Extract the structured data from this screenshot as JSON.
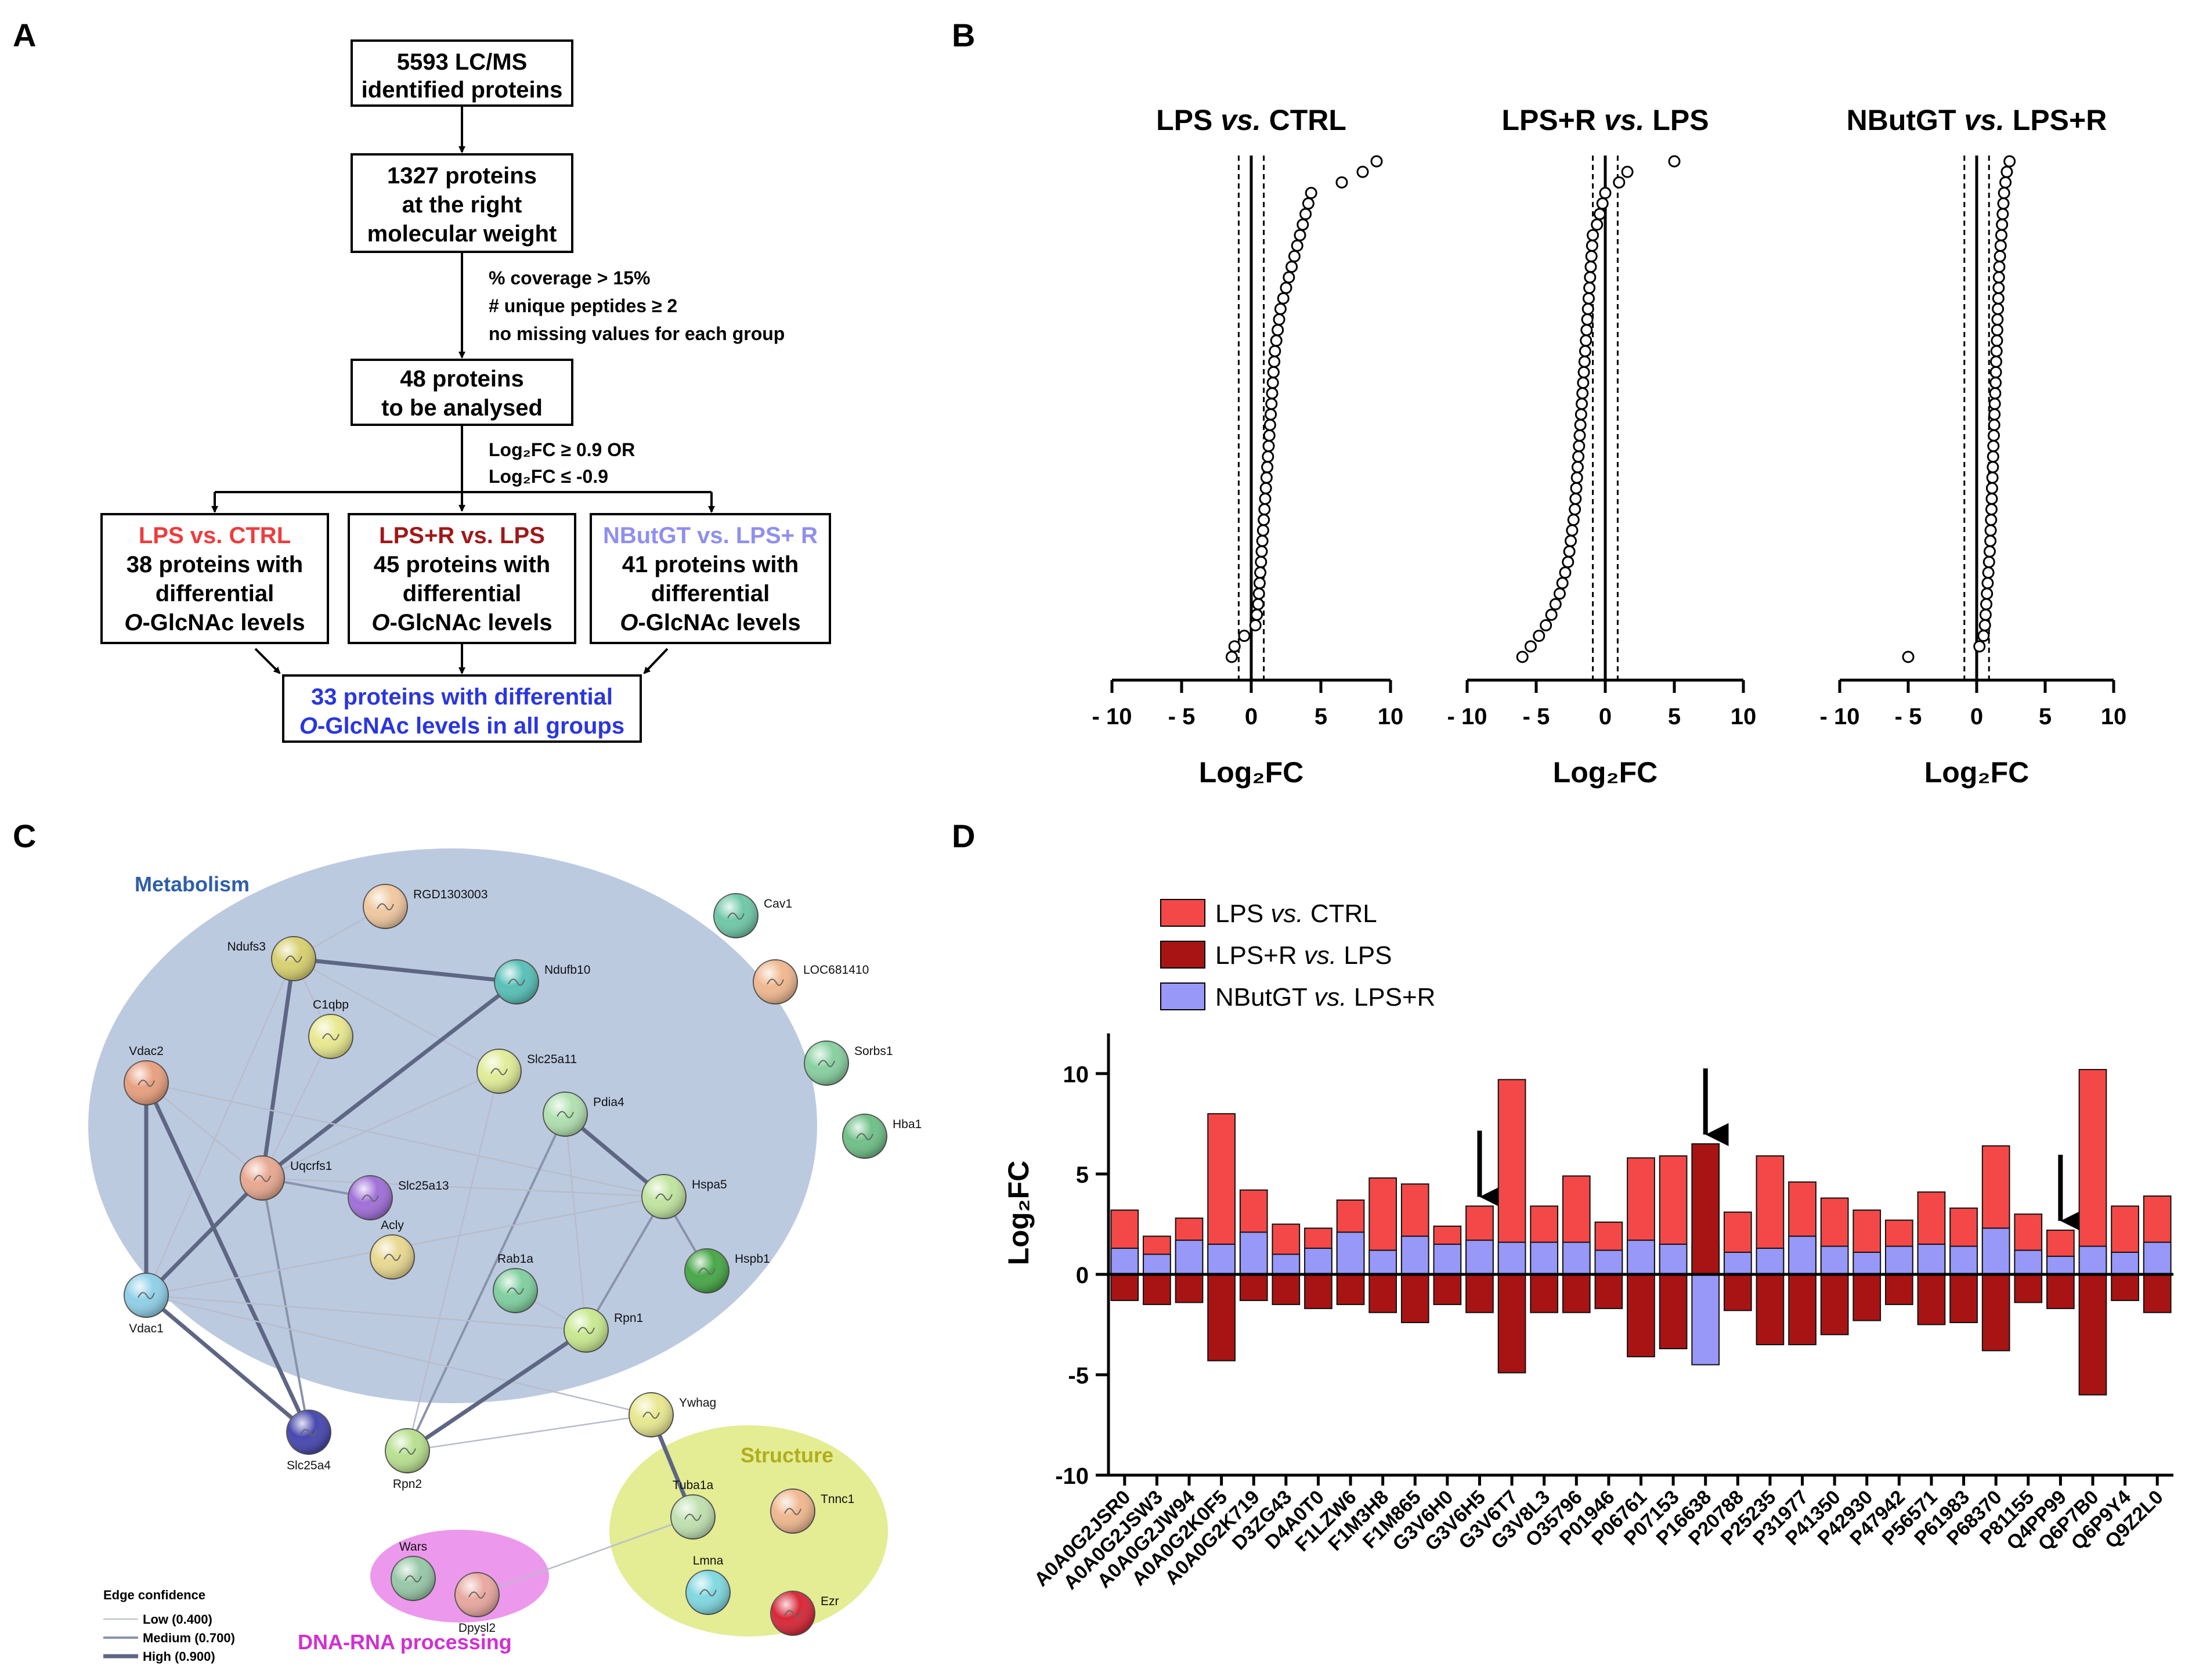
{
  "panels": {
    "a": "A",
    "b": "B",
    "c": "C",
    "d": "D"
  },
  "flow": {
    "box1": [
      "5593 LC/MS",
      "identified proteins"
    ],
    "box2": [
      "1327 proteins",
      "at the right",
      "molecular weight"
    ],
    "filter1": [
      "% coverage > 15%",
      "# unique peptides ≥ 2",
      "no missing values for each group"
    ],
    "box3": [
      "48 proteins",
      "to be analysed"
    ],
    "filter2_line1": "Log₂FC ≥ 0.9 OR",
    "filter2_line2": "Log₂FC ≤ -0.9",
    "groups": [
      {
        "title": "LPS vs. CTRL",
        "color": "#ee3c3c",
        "lines": [
          "38 proteins with",
          "differential"
        ]
      },
      {
        "title": "LPS+R vs. LPS",
        "color": "#a01818",
        "lines": [
          "45 proteins with",
          "differential"
        ]
      },
      {
        "title": "NButGT vs. LPS+ R",
        "color": "#8f8ff0",
        "lines": [
          "41 proteins with",
          "differential"
        ]
      }
    ],
    "o_prefix": "O",
    "o_suffix": "-GlcNAc levels",
    "final_line1": "33 proteins with differential",
    "final_line2_suffix": "-GlcNAc levels in all groups",
    "final_color": "#2a36e0"
  },
  "volcano": {
    "xlabel": "Log₂FC",
    "ticks": [
      "- 10",
      "- 5",
      "0",
      "5",
      "10"
    ],
    "tick_values": [
      -10,
      -5,
      0,
      5,
      10
    ],
    "threshold": 0.9,
    "plots": [
      {
        "title_a": "LPS ",
        "title_it": "vs.",
        "title_b": " CTRL",
        "values": [
          -1.4,
          -1.2,
          -0.5,
          0.3,
          0.4,
          0.5,
          0.55,
          0.6,
          0.65,
          0.7,
          0.75,
          0.8,
          0.85,
          0.9,
          0.95,
          1.0,
          1.05,
          1.1,
          1.15,
          1.2,
          1.25,
          1.3,
          1.35,
          1.4,
          1.45,
          1.5,
          1.55,
          1.6,
          1.65,
          1.7,
          1.8,
          1.9,
          2.0,
          2.1,
          2.3,
          2.5,
          2.7,
          2.9,
          3.1,
          3.3,
          3.5,
          3.7,
          3.9,
          4.1,
          4.3,
          6.5,
          8.0,
          9.0
        ]
      },
      {
        "title_a": "LPS+R ",
        "title_it": "vs.",
        "title_b": " LPS",
        "values": [
          -6.0,
          -5.4,
          -4.8,
          -4.3,
          -3.9,
          -3.6,
          -3.3,
          -3.1,
          -2.9,
          -2.7,
          -2.6,
          -2.5,
          -2.4,
          -2.3,
          -2.2,
          -2.15,
          -2.1,
          -2.05,
          -2.0,
          -1.95,
          -1.9,
          -1.85,
          -1.8,
          -1.75,
          -1.7,
          -1.65,
          -1.6,
          -1.55,
          -1.5,
          -1.45,
          -1.4,
          -1.35,
          -1.3,
          -1.25,
          -1.2,
          -1.15,
          -1.1,
          -1.05,
          -1.0,
          -0.95,
          -0.9,
          -0.6,
          -0.4,
          -0.2,
          0.0,
          1.0,
          1.6,
          5.0
        ]
      },
      {
        "title_a": "NButGT ",
        "title_it": "vs.",
        "title_b": " LPS+R",
        "values": [
          -5.0,
          0.2,
          0.5,
          0.6,
          0.65,
          0.7,
          0.75,
          0.8,
          0.85,
          0.9,
          0.95,
          1.0,
          1.02,
          1.05,
          1.08,
          1.1,
          1.12,
          1.15,
          1.18,
          1.2,
          1.22,
          1.25,
          1.28,
          1.3,
          1.32,
          1.35,
          1.38,
          1.4,
          1.42,
          1.45,
          1.48,
          1.5,
          1.52,
          1.55,
          1.58,
          1.6,
          1.62,
          1.65,
          1.7,
          1.75,
          1.8,
          1.85,
          1.9,
          1.95,
          2.0,
          2.1,
          2.2,
          2.4
        ]
      }
    ]
  },
  "network": {
    "groups": {
      "metabolism": {
        "label": "Metabolism",
        "color": "#2f5ea8"
      },
      "structure": {
        "label": "Structure",
        "color": "#b0ae1a"
      },
      "dna": {
        "label": "DNA-RNA processing",
        "color": "#d22fd2"
      }
    },
    "nodes": [
      {
        "id": "RGD1303003",
        "color": "#f0c8a0"
      },
      {
        "id": "Ndufs3",
        "color": "#d8d070"
      },
      {
        "id": "Ndufb10",
        "color": "#58c0b8"
      },
      {
        "id": "C1qbp",
        "color": "#e8e890"
      },
      {
        "id": "Slc25a11",
        "color": "#e0ec98"
      },
      {
        "id": "Vdac2",
        "color": "#e8a080"
      },
      {
        "id": "Pdia4",
        "color": "#b0e0b0"
      },
      {
        "id": "Uqcrfs1",
        "color": "#e8a890"
      },
      {
        "id": "Slc25a13",
        "color": "#a070d8"
      },
      {
        "id": "Hspa5",
        "color": "#c0e4a0"
      },
      {
        "id": "Hspb1",
        "color": "#48a848"
      },
      {
        "id": "Acly",
        "color": "#e8d890"
      },
      {
        "id": "Rab1a",
        "color": "#80d0a0"
      },
      {
        "id": "Vdac1",
        "color": "#90d0e8"
      },
      {
        "id": "Rpn1",
        "color": "#c8e890"
      },
      {
        "id": "Ywhag",
        "color": "#e8e890"
      },
      {
        "id": "Slc25a4",
        "color": "#4848b0"
      },
      {
        "id": "Rpn2",
        "color": "#b8e090"
      },
      {
        "id": "Cav1",
        "color": "#70c8a8"
      },
      {
        "id": "LOC681410",
        "color": "#f0b890"
      },
      {
        "id": "Sorbs1",
        "color": "#88d0a0"
      },
      {
        "id": "Hba1",
        "color": "#70c088"
      },
      {
        "id": "Tuba1a",
        "color": "#c0e0b0"
      },
      {
        "id": "Tnnc1",
        "color": "#f0b890"
      },
      {
        "id": "Lmna",
        "color": "#80d8e0"
      },
      {
        "id": "Ezr",
        "color": "#d82838"
      },
      {
        "id": "Wars",
        "color": "#98c8a8"
      },
      {
        "id": "Dpysl2",
        "color": "#e8a8a0"
      }
    ],
    "edges": [
      [
        "Ndufs3",
        "RGD1303003",
        1
      ],
      [
        "Ndufs3",
        "Ndufb10",
        3
      ],
      [
        "Ndufs3",
        "C1qbp",
        1
      ],
      [
        "Ndufs3",
        "Slc25a11",
        1
      ],
      [
        "Ndufs3",
        "Uqcrfs1",
        3
      ],
      [
        "Ndufs3",
        "Vdac1",
        1
      ],
      [
        "Ndufb10",
        "Uqcrfs1",
        3
      ],
      [
        "C1qbp",
        "Uqcrfs1",
        1
      ],
      [
        "Vdac2",
        "Vdac1",
        3
      ],
      [
        "Vdac2",
        "Slc25a4",
        3
      ],
      [
        "Vdac2",
        "Uqcrfs1",
        1
      ],
      [
        "Vdac2",
        "Hspa5",
        1
      ],
      [
        "Uqcrfs1",
        "Slc25a13",
        2
      ],
      [
        "Uqcrfs1",
        "Slc25a4",
        2
      ],
      [
        "Uqcrfs1",
        "Vdac1",
        3
      ],
      [
        "Uqcrfs1",
        "Slc25a11",
        1
      ],
      [
        "Slc25a11",
        "Rpn2",
        1
      ],
      [
        "Pdia4",
        "Hspa5",
        3
      ],
      [
        "Pdia4",
        "Rpn1",
        1
      ],
      [
        "Pdia4",
        "Rpn2",
        2
      ],
      [
        "Hspa5",
        "Hspb1",
        2
      ],
      [
        "Hspa5",
        "Rpn1",
        2
      ],
      [
        "Hspa5",
        "Vdac1",
        1
      ],
      [
        "Hspa5",
        "Uqcrfs1",
        1
      ],
      [
        "Vdac1",
        "Slc25a4",
        3
      ],
      [
        "Vdac1",
        "Ywhag",
        1
      ],
      [
        "Vdac1",
        "Rpn1",
        1
      ],
      [
        "Rab1a",
        "Rpn1",
        1
      ],
      [
        "Rpn1",
        "Rpn2",
        3
      ],
      [
        "Rpn2",
        "Ywhag",
        1
      ],
      [
        "Ywhag",
        "Tuba1a",
        3
      ],
      [
        "Tuba1a",
        "Dpysl2",
        1
      ]
    ],
    "legend_title": "Edge confidence",
    "legend_items": [
      "Low (0.400)",
      "Medium (0.700)",
      "High (0.900)"
    ]
  },
  "barchart": {
    "ylabel": "Log₂FC",
    "yticks": [
      "10",
      "5",
      "0",
      "-5",
      "-10"
    ],
    "ytick_values": [
      10,
      5,
      0,
      -5,
      -10
    ],
    "legend": [
      {
        "a": "LPS ",
        "it": "vs.",
        "b": " CTRL",
        "color": "#f44848"
      },
      {
        "a": "LPS+R ",
        "it": "vs.",
        "b": " LPS",
        "color": "#a81414"
      },
      {
        "a": "NButGT ",
        "it": "vs.",
        "b": " LPS+R",
        "color": "#9898f8"
      }
    ]
  },
  "chart_data": {
    "type": "bar",
    "title": "",
    "xlabel": "",
    "ylabel": "Log₂FC",
    "ylim": [
      -10,
      12
    ],
    "categories": [
      "A0A0G2JSR0",
      "A0A0G2JSW3",
      "A0A0G2JW94",
      "A0A0G2K0F5",
      "A0A0G2K719",
      "D3ZG43",
      "D4A0T0",
      "F1LZW6",
      "F1M3H8",
      "F1M865",
      "G3V6H0",
      "G3V6H5",
      "G3V6T7",
      "G3V8L3",
      "O35796",
      "P01946",
      "P06761",
      "P07153",
      "P16638",
      "P20788",
      "P25235",
      "P31977",
      "P41350",
      "P42930",
      "P47942",
      "P56571",
      "P61983",
      "P68370",
      "P81155",
      "Q4PP99",
      "Q6P7B0",
      "Q6P9Y4",
      "Q9Z2L0"
    ],
    "series": [
      {
        "name": "LPS vs. CTRL",
        "values": [
          3.2,
          1.9,
          2.8,
          8.0,
          4.2,
          2.5,
          2.3,
          3.7,
          4.8,
          4.5,
          2.4,
          3.4,
          9.7,
          3.4,
          4.9,
          2.6,
          5.8,
          5.9,
          1.5,
          3.1,
          5.9,
          4.6,
          3.8,
          3.2,
          2.7,
          4.1,
          3.3,
          6.4,
          3.0,
          2.2,
          10.2,
          3.4,
          3.9
        ]
      },
      {
        "name": "LPS+R vs. LPS",
        "values": [
          -1.3,
          -1.5,
          -1.4,
          -4.3,
          -1.3,
          -1.5,
          -1.7,
          -1.5,
          -1.9,
          -2.4,
          -1.5,
          -1.9,
          -4.9,
          -1.9,
          -1.9,
          -1.7,
          -4.1,
          -3.7,
          6.5,
          -1.8,
          -3.5,
          -3.5,
          -3.0,
          -2.3,
          -1.5,
          -2.5,
          -2.4,
          -3.8,
          -1.4,
          -1.7,
          -6.0,
          -1.3,
          -1.9
        ]
      },
      {
        "name": "NButGT vs. LPS+R",
        "values": [
          1.3,
          1.0,
          1.7,
          1.5,
          2.1,
          1.0,
          1.3,
          2.1,
          1.2,
          1.9,
          1.5,
          1.7,
          1.6,
          1.6,
          1.6,
          1.2,
          1.7,
          1.5,
          -4.5,
          1.1,
          1.3,
          1.9,
          1.4,
          1.1,
          1.4,
          1.5,
          1.4,
          2.3,
          1.2,
          0.9,
          1.4,
          1.1,
          1.6
        ]
      }
    ],
    "arrows_at": [
      "G3V6H5",
      "P16638",
      "Q4PP99"
    ]
  }
}
